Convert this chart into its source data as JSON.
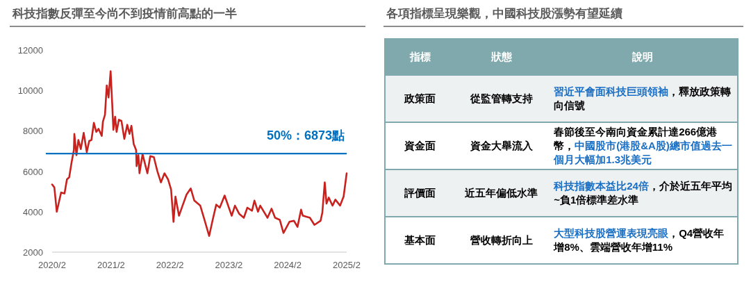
{
  "chart_data": [
    {
      "type": "line",
      "title": "科技指數反彈至今尚不到疫情前高點的一半",
      "x": [
        "2020-02-01",
        "2020-02-15",
        "2020-03-01",
        "2020-03-15",
        "2020-03-28",
        "2020-04-18",
        "2020-05-03",
        "2020-05-17",
        "2020-06-01",
        "2020-06-15",
        "2020-06-18",
        "2020-07-01",
        "2020-07-13",
        "2020-07-28",
        "2020-08-15",
        "2020-09-03",
        "2020-09-18",
        "2020-10-02",
        "2020-10-17",
        "2020-11-01",
        "2020-11-15",
        "2020-12-05",
        "2020-12-12",
        "2020-12-25",
        "2021-01-05",
        "2021-01-16",
        "2021-01-29",
        "2021-02-08",
        "2021-02-15",
        "2021-02-26",
        "2021-03-07",
        "2021-03-21",
        "2021-04-06",
        "2021-04-24",
        "2021-05-12",
        "2021-05-26",
        "2021-06-07",
        "2021-06-21",
        "2021-07-06",
        "2021-07-09",
        "2021-07-20",
        "2021-07-27",
        "2021-08-15",
        "2021-09-03",
        "2021-09-14",
        "2021-10-02",
        "2021-10-24",
        "2021-11-15",
        "2021-12-07",
        "2021-12-29",
        "2022-01-20",
        "2022-02-08",
        "2022-02-23",
        "2022-03-07",
        "2022-03-29",
        "2022-04-20",
        "2022-05-15",
        "2022-06-10",
        "2022-07-02",
        "2022-08-08",
        "2022-09-03",
        "2022-10-02",
        "2022-10-24",
        "2022-11-15",
        "2022-12-07",
        "2023-01-06",
        "2023-02-19",
        "2023-03-11",
        "2023-04-06",
        "2023-05-05",
        "2023-05-27",
        "2023-06-25",
        "2023-07-10",
        "2023-08-01",
        "2023-08-15",
        "2023-09-29",
        "2023-10-24",
        "2023-11-15",
        "2023-12-14",
        "2024-01-06",
        "2024-02-12",
        "2024-03-11",
        "2024-04-02",
        "2024-04-24",
        "2024-05-05",
        "2024-06-18",
        "2024-07-16",
        "2024-08-23",
        "2024-09-03",
        "2024-09-18",
        "2024-09-29",
        "2024-10-13",
        "2024-11-05",
        "2024-11-23",
        "2024-12-22",
        "2025-01-13",
        "2025-02-01"
      ],
      "series": [
        {
          "color": "#c8221f",
          "values": [
            5350,
            5200,
            4000,
            4500,
            4950,
            4900,
            5600,
            5700,
            6450,
            7050,
            7850,
            6800,
            7550,
            7100,
            7900,
            6950,
            7500,
            7550,
            8400,
            7950,
            8100,
            7750,
            8450,
            8800,
            10250,
            9650,
            10950,
            9300,
            8050,
            8700,
            7950,
            8550,
            8500,
            7600,
            8300,
            7850,
            8250,
            7350,
            7050,
            6250,
            6800,
            5900,
            6850,
            6250,
            5900,
            6750,
            6700,
            6000,
            5450,
            5900,
            5600,
            5100,
            3500,
            4750,
            3800,
            4300,
            4850,
            5150,
            4550,
            4300,
            3600,
            2800,
            3600,
            4350,
            4200,
            4800,
            3800,
            4300,
            3900,
            3700,
            4200,
            4050,
            4550,
            4000,
            4300,
            3700,
            4150,
            3700,
            3600,
            2950,
            3500,
            3550,
            3250,
            4100,
            3800,
            3700,
            3350,
            3550,
            3950,
            5450,
            4400,
            4700,
            4300,
            4600,
            4300,
            4750,
            5900
          ]
        }
      ],
      "xlim": [
        "2020-02-01",
        "2025-02-01"
      ],
      "xticks": [
        {
          "value": "2020-02-01",
          "label": "2020/2"
        },
        {
          "value": "2021-02-01",
          "label": "2021/2"
        },
        {
          "value": "2022-02-01",
          "label": "2022/2"
        },
        {
          "value": "2023-02-01",
          "label": "2023/2"
        },
        {
          "value": "2024-02-01",
          "label": "2024/2"
        },
        {
          "value": "2025-02-01",
          "label": "2025/2"
        }
      ],
      "ylim": [
        2000,
        12000
      ],
      "yticks": [
        2000,
        4000,
        6000,
        8000,
        10000,
        12000
      ],
      "grid": false,
      "marker": "none",
      "line_style": "solid",
      "ref_lines": [
        {
          "axis": "y",
          "value": 6873,
          "label": "50%：6873點",
          "color": "#0070c0"
        }
      ]
    },
    {
      "type": "other",
      "title": "各項指標呈現樂觀，中國科技股漲勢有望延續",
      "categories": [
        "指標",
        "狀態",
        "說明"
      ],
      "cells": [
        [
          "政策面",
          "從監管轉支持",
          [
            {
              "text": "習近平會面科技巨頭領袖",
              "color": "#1a6fc4"
            },
            {
              "text": "，釋放政策轉向信號",
              "color": "#000000"
            }
          ]
        ],
        [
          "資金面",
          "資金大舉流入",
          [
            {
              "text": "春節後至今南向資金累計達266億港幣，",
              "color": "#000000"
            },
            {
              "text": "中國股市(港股&A股)總市值過去一個月大幅加1.3兆美元",
              "color": "#1a6fc4"
            }
          ]
        ],
        [
          "評價面",
          "近五年偏低水準",
          [
            {
              "text": "科技指數本益比24倍",
              "color": "#1a6fc4"
            },
            {
              "text": "，介於近五年平均~負1倍標準差水準",
              "color": "#000000"
            }
          ]
        ],
        [
          "基本面",
          "營收轉折向上",
          [
            {
              "text": "大型科技股營運表現亮眼",
              "color": "#1a6fc4"
            },
            {
              "text": "，Q4營收年增8%、雲端營收年增11%",
              "color": "#000000"
            }
          ]
        ]
      ]
    }
  ]
}
